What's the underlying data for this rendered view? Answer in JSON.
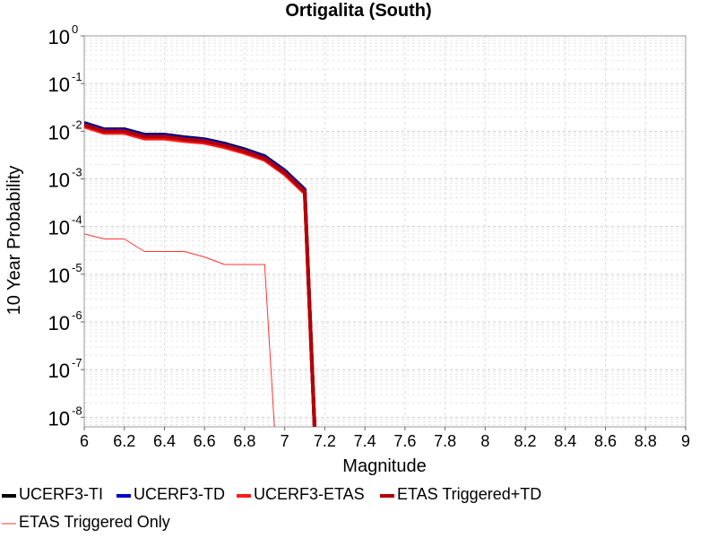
{
  "chart_data": {
    "type": "line",
    "title": "Ortigalita (South)",
    "xlabel": "Magnitude",
    "ylabel": "10 Year Probability",
    "xlim": [
      6,
      9
    ],
    "ylim_log10": [
      -8.2,
      0
    ],
    "yscale": "log",
    "grid": true,
    "legend_position": "bottom",
    "x_ticks": [
      "6",
      "6.2",
      "6.4",
      "6.6",
      "6.8",
      "7",
      "7.2",
      "7.4",
      "7.6",
      "7.8",
      "8",
      "8.2",
      "8.4",
      "8.6",
      "8.8",
      "9"
    ],
    "y_ticks": [
      {
        "base": "10",
        "exp": "0"
      },
      {
        "base": "10",
        "exp": "-1"
      },
      {
        "base": "10",
        "exp": "-2"
      },
      {
        "base": "10",
        "exp": "-3"
      },
      {
        "base": "10",
        "exp": "-4"
      },
      {
        "base": "10",
        "exp": "-5"
      },
      {
        "base": "10",
        "exp": "-6"
      },
      {
        "base": "10",
        "exp": "-7"
      },
      {
        "base": "10",
        "exp": "-8"
      }
    ],
    "series": [
      {
        "name": "UCERF3-TI",
        "color": "#000000",
        "width": 4,
        "x": [
          6.0,
          6.1,
          6.2,
          6.3,
          6.4,
          6.5,
          6.6,
          6.7,
          6.8,
          6.9,
          7.0,
          7.1,
          7.15
        ],
        "y": [
          0.015,
          0.011,
          0.011,
          0.0085,
          0.0085,
          0.0075,
          0.0068,
          0.0055,
          0.0042,
          0.003,
          0.0015,
          0.0006,
          1e-09
        ]
      },
      {
        "name": "UCERF3-TD",
        "color": "#0000cc",
        "width": 4,
        "x": [
          6.0,
          6.1,
          6.2,
          6.3,
          6.4,
          6.5,
          6.6,
          6.7,
          6.8,
          6.9,
          7.0,
          7.1,
          7.15
        ],
        "y": [
          0.0145,
          0.0107,
          0.0107,
          0.0082,
          0.0082,
          0.0072,
          0.0066,
          0.0053,
          0.004,
          0.0029,
          0.00145,
          0.00058,
          1e-09
        ]
      },
      {
        "name": "UCERF3-ETAS",
        "color": "#ff1a1a",
        "width": 4,
        "x": [
          6.0,
          6.1,
          6.2,
          6.3,
          6.4,
          6.5,
          6.6,
          6.7,
          6.8,
          6.9,
          7.0,
          7.1,
          7.15
        ],
        "y": [
          0.0125,
          0.0092,
          0.0092,
          0.007,
          0.007,
          0.0062,
          0.0057,
          0.0046,
          0.0035,
          0.0025,
          0.00125,
          0.0005,
          1e-09
        ]
      },
      {
        "name": "ETAS Triggered+TD",
        "color": "#b30000",
        "width": 4,
        "x": [
          6.0,
          6.1,
          6.2,
          6.3,
          6.4,
          6.5,
          6.6,
          6.7,
          6.8,
          6.9,
          7.0,
          7.1,
          7.15
        ],
        "y": [
          0.0135,
          0.01,
          0.01,
          0.0077,
          0.0077,
          0.0068,
          0.0062,
          0.005,
          0.0038,
          0.0027,
          0.00135,
          0.00054,
          1e-09
        ]
      },
      {
        "name": "ETAS Triggered Only",
        "color": "#ff3333",
        "width": 1,
        "x": [
          6.0,
          6.1,
          6.2,
          6.3,
          6.4,
          6.5,
          6.6,
          6.7,
          6.8,
          6.9,
          6.95
        ],
        "y": [
          7e-05,
          5.5e-05,
          5.5e-05,
          3e-05,
          3e-05,
          3e-05,
          2.3e-05,
          1.6e-05,
          1.6e-05,
          1.6e-05,
          1e-09
        ]
      }
    ]
  }
}
